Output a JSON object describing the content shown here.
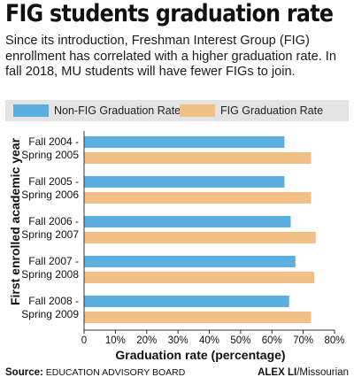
{
  "header": {
    "title": "FIG students graduation rate",
    "subtitle": "Since its introduction, Freshman Interest Group (FIG) enrollment has correlated with a higher graduation rate. In fall 2018, MU students will have fewer FIGs to join."
  },
  "footer": {
    "source_label": "Source:",
    "source_name": "EDUCATION ADVISORY BOARD",
    "credit_name": "ALEX LI",
    "credit_outlet": "/Missourian"
  },
  "colors": {
    "non_fig": "#5aaee0",
    "fig": "#f2bf85",
    "legend_background": "#e4e4e4"
  },
  "chart_data": {
    "type": "bar",
    "orientation": "horizontal",
    "categories": [
      [
        "Fall 2004 -",
        "Spring 2005"
      ],
      [
        "Fall 2005 -",
        "Spring 2006"
      ],
      [
        "Fall 2006 -",
        "Spring 2007"
      ],
      [
        "Fall 2007 -",
        "Spring 2008"
      ],
      [
        "Fall 2008 -",
        "Spring 2009"
      ]
    ],
    "series": [
      {
        "name": "Non-FIG Graduation Rate",
        "values": [
          64,
          64,
          66,
          67.5,
          65.5
        ],
        "color": "#5aaee0"
      },
      {
        "name": "FIG Graduation Rate",
        "values": [
          72.5,
          72.5,
          74,
          73.5,
          72.5
        ],
        "color": "#f2bf85"
      }
    ],
    "xlabel": "Graduation rate (percentage)",
    "ylabel": "First enrolled academic year",
    "xlim": [
      0,
      80
    ],
    "xticks": [
      0,
      10,
      20,
      30,
      40,
      50,
      60,
      70,
      80
    ],
    "xtick_labels": [
      "0",
      "10%",
      "20%",
      "30%",
      "40%",
      "50%",
      "60%",
      "70%",
      "80%"
    ],
    "grid": false,
    "legend": "top"
  }
}
